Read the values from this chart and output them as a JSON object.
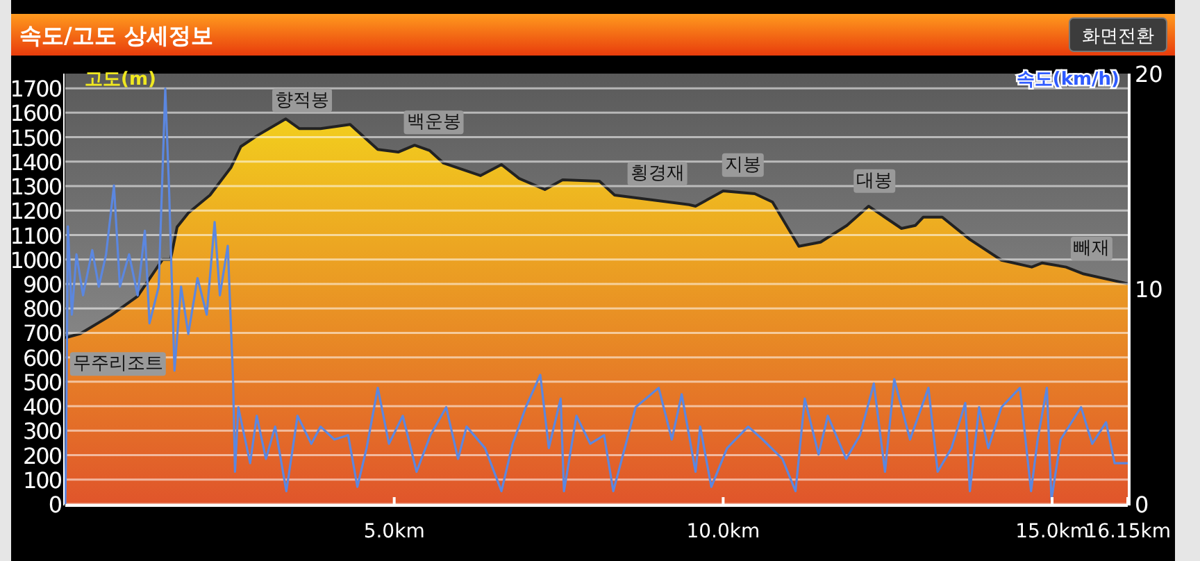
{
  "chart_data": {
    "type": "area",
    "title": "속도/고도 상세정보",
    "ylabel": "고도(m)",
    "y2label": "속도(km/h)",
    "annotations": [
      "화면전환",
      {
        "text": "무주리조트",
        "x": 0.8,
        "y": 780
      },
      {
        "text": "향적봉",
        "x": 3.6,
        "y": 1540
      },
      {
        "text": "백운봉",
        "x": 5.6,
        "y": 1450
      },
      {
        "text": "횡경재",
        "x": 9.0,
        "y": 1240
      },
      {
        "text": "지봉",
        "x": 10.3,
        "y": 1275
      },
      {
        "text": "대봉",
        "x": 12.3,
        "y": 1210
      },
      {
        "text": "빼재",
        "x": 15.6,
        "y": 934
      }
    ],
    "xlim": [
      0,
      16.15
    ],
    "xticks": [
      {
        "value": 5,
        "label": "5.0km"
      },
      {
        "value": 10,
        "label": "10.0km"
      },
      {
        "value": 15,
        "label": "15.0km"
      },
      {
        "value": 16.15,
        "label": "16.15km"
      }
    ],
    "ylim": [
      0,
      1760
    ],
    "yticks": [
      0,
      100,
      200,
      300,
      400,
      500,
      600,
      700,
      800,
      900,
      1000,
      1100,
      1200,
      1300,
      1400,
      1500,
      1600,
      1700
    ],
    "y2lim": [
      0,
      20
    ],
    "y2ticks": [
      0,
      10,
      20
    ],
    "grid": "y",
    "series": [
      {
        "type": "area",
        "color": "#f4dc1c",
        "x": [
          0,
          0.23,
          0.69,
          1.1,
          1.48,
          1.6,
          1.7,
          1.87,
          2.2,
          2.52,
          2.67,
          2.92,
          3.35,
          3.56,
          3.88,
          4.33,
          4.75,
          5.06,
          5.31,
          5.54,
          5.75,
          6.31,
          6.63,
          6.9,
          7.29,
          7.56,
          8.12,
          8.35,
          9.48,
          9.58,
          10.0,
          10.48,
          10.75,
          11.15,
          11.48,
          11.88,
          12.21,
          12.71,
          12.92,
          13.04,
          13.33,
          13.75,
          14.23,
          14.69,
          14.85,
          15.21,
          15.48,
          16.15
        ],
        "values": [
          680,
          697,
          771,
          850,
          1000,
          1000,
          1133,
          1190,
          1263,
          1377,
          1462,
          1507,
          1575,
          1535,
          1535,
          1552,
          1450,
          1439,
          1467,
          1445,
          1394,
          1343,
          1388,
          1331,
          1286,
          1326,
          1320,
          1263,
          1224,
          1218,
          1280,
          1269,
          1235,
          1054,
          1071,
          1139,
          1218,
          1127,
          1139,
          1173,
          1173,
          1082,
          997,
          969,
          986,
          969,
          941,
          901
        ]
      },
      {
        "type": "line",
        "axis": "y2",
        "color": "#5b87e0",
        "x": [
          0,
          0.01,
          0.04,
          0.1,
          0.17,
          0.27,
          0.41,
          0.51,
          0.62,
          0.74,
          0.83,
          0.97,
          1.1,
          1.21,
          1.28,
          1.42,
          1.52,
          1.58,
          1.66,
          1.76,
          1.87,
          2.01,
          2.15,
          2.27,
          2.35,
          2.47,
          2.55,
          2.58,
          2.63,
          2.81,
          2.91,
          3.05,
          3.19,
          3.36,
          3.53,
          3.74,
          3.88,
          4.09,
          4.3,
          4.44,
          4.58,
          4.75,
          4.92,
          5.13,
          5.34,
          5.55,
          5.79,
          5.97,
          6.1,
          6.38,
          6.63,
          6.8,
          7.0,
          7.22,
          7.35,
          7.53,
          7.58,
          7.77,
          7.98,
          8.19,
          8.33,
          8.67,
          9.02,
          9.22,
          9.37,
          9.58,
          9.65,
          9.82,
          10.06,
          10.38,
          10.6,
          10.9,
          11.1,
          11.24,
          11.45,
          11.59,
          11.87,
          12.08,
          12.29,
          12.46,
          12.6,
          12.84,
          13.12,
          13.26,
          13.47,
          13.68,
          13.75,
          13.89,
          14.03,
          14.23,
          14.51,
          14.68,
          14.78,
          14.92,
          14.99,
          15.13,
          15.44,
          15.61,
          15.82,
          15.95,
          16.15
        ],
        "values": [
          0,
          2.1,
          12.9,
          8.8,
          11.6,
          9.7,
          11.8,
          10.1,
          11.6,
          14.8,
          10.1,
          11.6,
          9.7,
          12.7,
          8.4,
          10.1,
          19.3,
          14.4,
          6.2,
          10.1,
          7.9,
          10.5,
          8.8,
          13.1,
          9.7,
          12.0,
          5.8,
          1.5,
          4.5,
          1.9,
          4.1,
          2.1,
          3.6,
          0.6,
          4.1,
          2.8,
          3.6,
          3.0,
          3.2,
          0.8,
          2.6,
          5.4,
          2.8,
          4.1,
          1.5,
          3.2,
          4.5,
          2.1,
          3.6,
          2.6,
          0.6,
          2.8,
          4.5,
          6.0,
          2.6,
          4.9,
          0.6,
          4.1,
          2.8,
          3.2,
          0.6,
          4.5,
          5.4,
          3.0,
          5.1,
          1.5,
          3.6,
          0.8,
          2.6,
          3.6,
          3.0,
          2.1,
          0.6,
          4.9,
          2.3,
          4.1,
          2.1,
          3.2,
          5.6,
          1.5,
          5.8,
          3.0,
          5.4,
          1.5,
          2.6,
          4.7,
          0.6,
          4.5,
          2.6,
          4.5,
          5.4,
          0.6,
          3.0,
          5.4,
          0.2,
          3.0,
          4.5,
          2.8,
          3.8,
          1.9,
          1.9
        ]
      }
    ]
  }
}
